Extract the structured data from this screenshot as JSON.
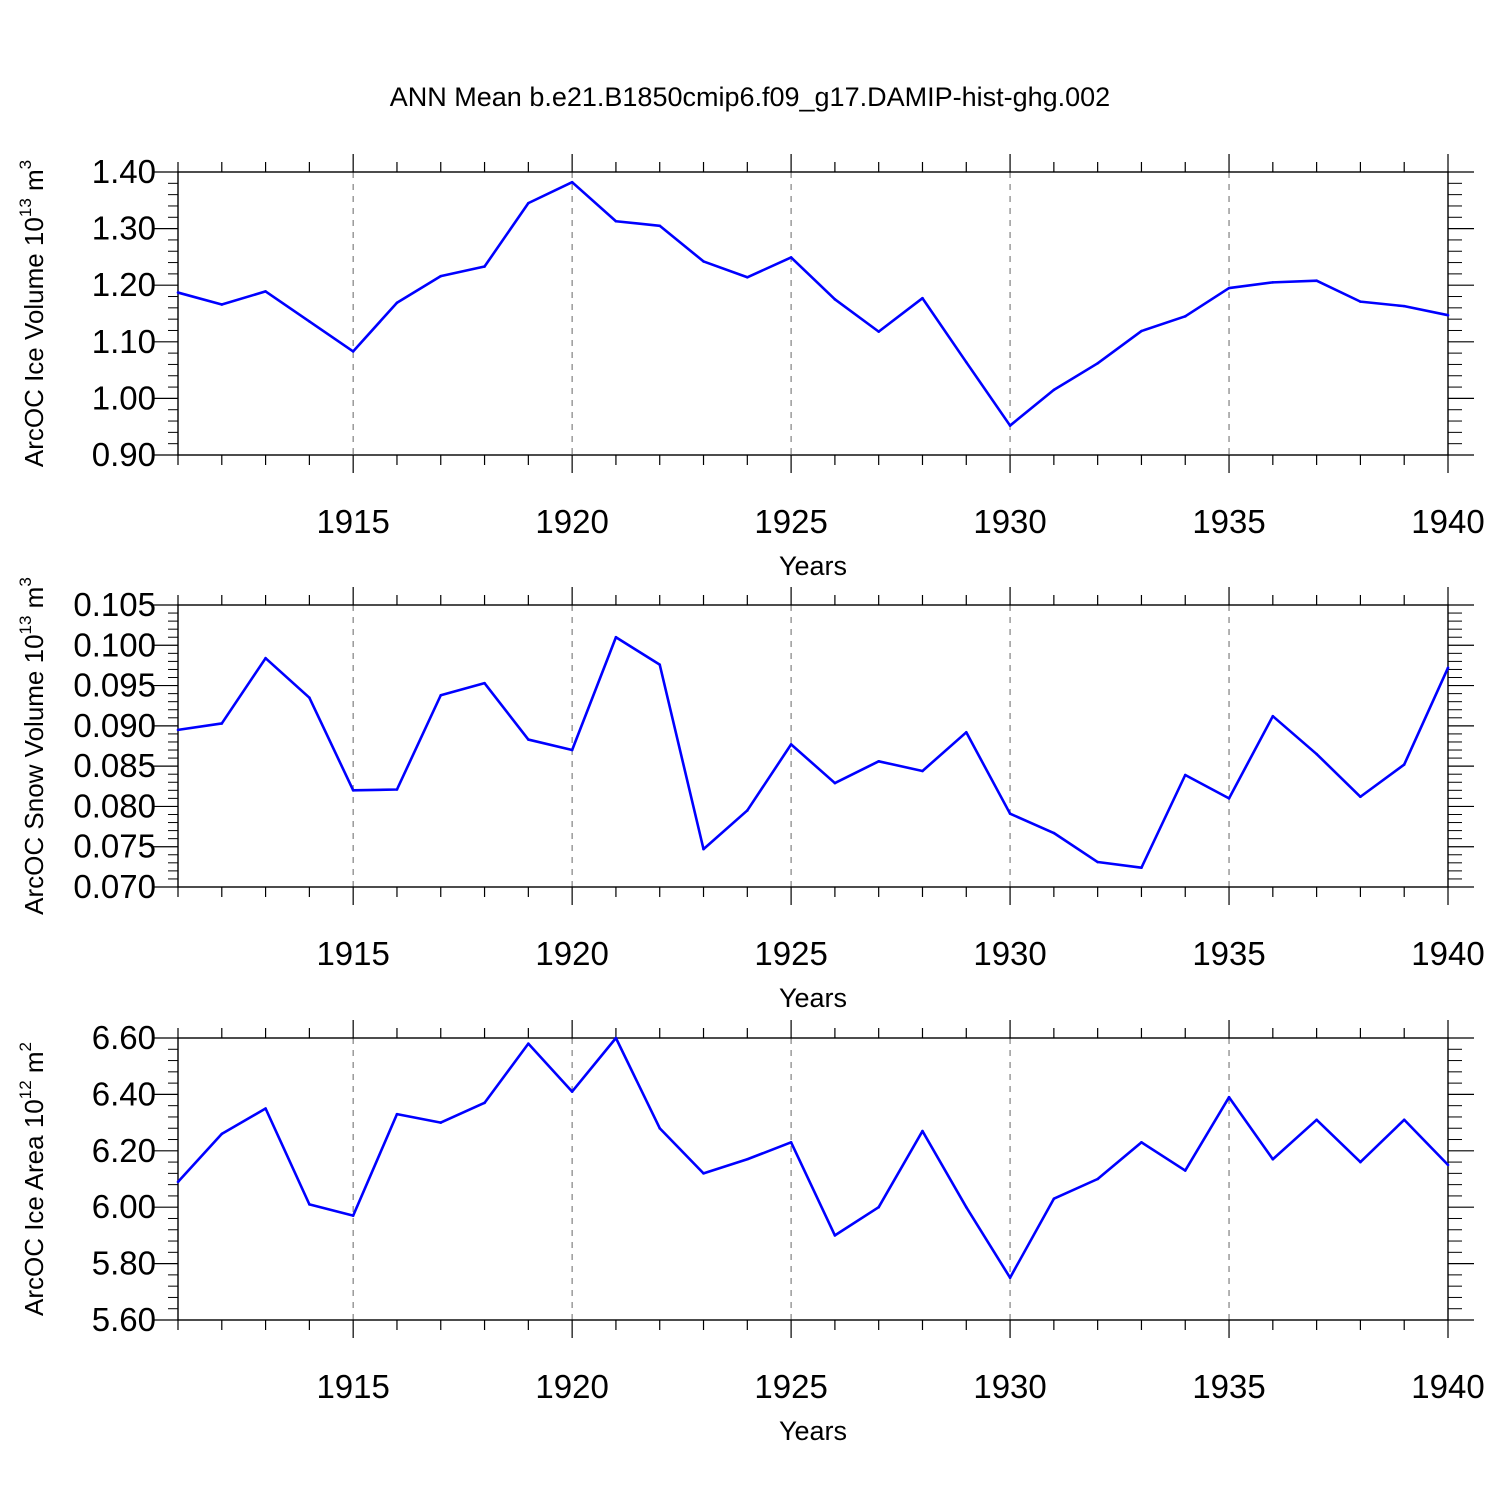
{
  "figure": {
    "title": "ANN Mean b.e21.B1850cmip6.f09_g17.DAMIP-hist-ghg.002"
  },
  "colors": {
    "line": "#0000ff",
    "axis": "#000000",
    "grid": "#808080"
  },
  "chart_data": [
    {
      "type": "line",
      "title": "ANN Mean b.e21.B1850cmip6.f09_g17.DAMIP-hist-ghg.002",
      "xlabel": "Years",
      "ylabel": {
        "text": "ArcOC Ice Volume 10",
        "sup1": "13",
        "unit": " m",
        "sup2": "3"
      },
      "xlim": [
        1911,
        1940
      ],
      "ylim": [
        0.9,
        1.4
      ],
      "xticks": [
        1915,
        1920,
        1925,
        1930,
        1935,
        1940
      ],
      "yticks": [
        0.9,
        1.0,
        1.1,
        1.2,
        1.3,
        1.4
      ],
      "ytick_labels": [
        "0.90",
        "1.00",
        "1.10",
        "1.20",
        "1.30",
        "1.40"
      ],
      "grid": "vertical dashed at major x ticks",
      "x": [
        1911,
        1912,
        1913,
        1914,
        1915,
        1916,
        1917,
        1918,
        1919,
        1920,
        1921,
        1922,
        1923,
        1924,
        1925,
        1926,
        1927,
        1928,
        1929,
        1930,
        1931,
        1932,
        1933,
        1934,
        1935,
        1936,
        1937,
        1938,
        1939,
        1940
      ],
      "series": [
        {
          "values": [
            1.187,
            1.166,
            1.189,
            1.136,
            1.083,
            1.169,
            1.216,
            1.233,
            1.345,
            1.382,
            1.313,
            1.305,
            1.242,
            1.214,
            1.249,
            1.175,
            1.118,
            1.177,
            1.064,
            0.952,
            1.015,
            1.062,
            1.119,
            1.145,
            1.195,
            1.205,
            1.208,
            1.171,
            1.163,
            1.147
          ]
        }
      ]
    },
    {
      "type": "line",
      "xlabel": "Years",
      "ylabel": {
        "text": "ArcOC Snow Volume 10",
        "sup1": "13",
        "unit": " m",
        "sup2": "3"
      },
      "xlim": [
        1911,
        1940
      ],
      "ylim": [
        0.07,
        0.105
      ],
      "xticks": [
        1915,
        1920,
        1925,
        1930,
        1935,
        1940
      ],
      "yticks": [
        0.07,
        0.075,
        0.08,
        0.085,
        0.09,
        0.095,
        0.1,
        0.105
      ],
      "ytick_labels": [
        "0.070",
        "0.075",
        "0.080",
        "0.085",
        "0.090",
        "0.095",
        "0.100",
        "0.105"
      ],
      "grid": "vertical dashed at major x ticks",
      "x": [
        1911,
        1912,
        1913,
        1914,
        1915,
        1916,
        1917,
        1918,
        1919,
        1920,
        1921,
        1922,
        1923,
        1924,
        1925,
        1926,
        1927,
        1928,
        1929,
        1930,
        1931,
        1932,
        1933,
        1934,
        1935,
        1936,
        1937,
        1938,
        1939,
        1940
      ],
      "series": [
        {
          "values": [
            0.0895,
            0.0903,
            0.0984,
            0.0935,
            0.082,
            0.0821,
            0.0938,
            0.0953,
            0.0883,
            0.087,
            0.101,
            0.0976,
            0.0747,
            0.0795,
            0.0877,
            0.0829,
            0.0856,
            0.0844,
            0.0892,
            0.0791,
            0.0767,
            0.0731,
            0.0724,
            0.0839,
            0.081,
            0.0912,
            0.0865,
            0.0812,
            0.0852,
            0.0972
          ]
        }
      ]
    },
    {
      "type": "line",
      "xlabel": "Years",
      "ylabel": {
        "text": "ArcOC Ice Area 10",
        "sup1": "12",
        "unit": " m",
        "sup2": "2"
      },
      "xlim": [
        1911,
        1940
      ],
      "ylim": [
        5.6,
        6.6
      ],
      "xticks": [
        1915,
        1920,
        1925,
        1930,
        1935,
        1940
      ],
      "yticks": [
        5.6,
        5.8,
        6.0,
        6.2,
        6.4,
        6.6
      ],
      "ytick_labels": [
        "5.60",
        "5.80",
        "6.00",
        "6.20",
        "6.40",
        "6.60"
      ],
      "grid": "vertical dashed at major x ticks",
      "x": [
        1911,
        1912,
        1913,
        1914,
        1915,
        1916,
        1917,
        1918,
        1919,
        1920,
        1921,
        1922,
        1923,
        1924,
        1925,
        1926,
        1927,
        1928,
        1929,
        1930,
        1931,
        1932,
        1933,
        1934,
        1935,
        1936,
        1937,
        1938,
        1939,
        1940
      ],
      "series": [
        {
          "values": [
            6.09,
            6.26,
            6.35,
            6.01,
            5.97,
            6.33,
            6.3,
            6.37,
            6.58,
            6.41,
            6.6,
            6.28,
            6.12,
            6.17,
            6.23,
            5.9,
            6.0,
            6.27,
            6.0,
            5.75,
            6.03,
            6.1,
            6.23,
            6.13,
            6.39,
            6.17,
            6.31,
            6.16,
            6.31,
            6.15
          ]
        }
      ]
    }
  ]
}
